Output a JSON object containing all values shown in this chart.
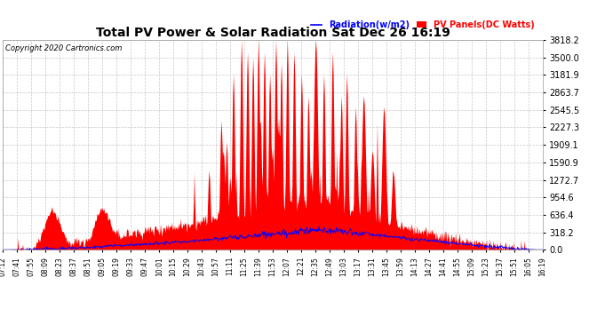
{
  "title": "Total PV Power & Solar Radiation Sat Dec 26 16:19",
  "copyright_text": "Copyright 2020 Cartronics.com",
  "legend_radiation": "Radiation(w/m2)",
  "legend_pv": "PV Panels(DC Watts)",
  "legend_radiation_color": "blue",
  "legend_pv_color": "red",
  "ymin": 0.0,
  "ymax": 3818.2,
  "yticks": [
    0.0,
    318.2,
    636.4,
    954.6,
    1272.7,
    1590.9,
    1909.1,
    2227.3,
    2545.5,
    2863.7,
    3181.9,
    3500.0,
    3818.2
  ],
  "background_color": "#ffffff",
  "grid_color": "#c8c8c8",
  "fill_color": "red",
  "line_color": "blue",
  "xtick_labels": [
    "07:12",
    "07:41",
    "07:55",
    "08:09",
    "08:23",
    "08:37",
    "08:51",
    "09:05",
    "09:19",
    "09:33",
    "09:47",
    "10:01",
    "10:15",
    "10:29",
    "10:43",
    "10:57",
    "11:11",
    "11:25",
    "11:39",
    "11:53",
    "12:07",
    "12:21",
    "12:35",
    "12:49",
    "13:03",
    "13:17",
    "13:31",
    "13:45",
    "13:59",
    "14:13",
    "14:27",
    "14:41",
    "14:55",
    "15:09",
    "15:23",
    "15:37",
    "15:51",
    "16:05",
    "16:19"
  ]
}
